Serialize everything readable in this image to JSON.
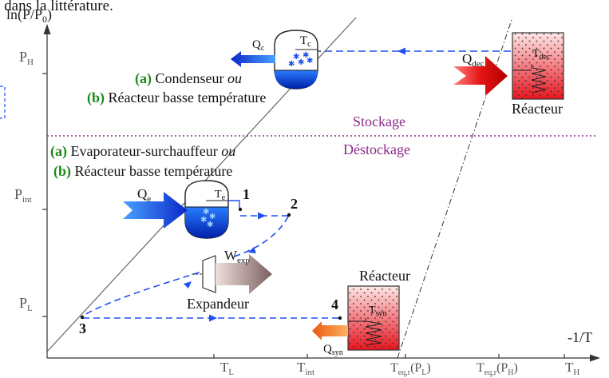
{
  "header_fragment": "e dans la littérature.",
  "axes": {
    "y_label": "ln(P/P",
    "y_label_sub": "0",
    "y_label_close": ")",
    "x_label": "-1/T",
    "y_ticks": [
      {
        "main": "P",
        "sub": "H"
      },
      {
        "main": "P",
        "sub": "int"
      },
      {
        "main": "P",
        "sub": "L"
      }
    ],
    "x_ticks": [
      {
        "main": "T",
        "sub": "L",
        "tail": ""
      },
      {
        "main": "T",
        "sub": "int",
        "tail": ""
      },
      {
        "main": "T",
        "sub": "eq,r",
        "tail": "(P",
        "tail_sub": "L",
        "tail_close": ")"
      },
      {
        "main": "T",
        "sub": "eq,r",
        "tail": "(P",
        "tail_sub": "H",
        "tail_close": ")"
      },
      {
        "main": "T",
        "sub": "H",
        "tail": ""
      }
    ]
  },
  "sections": {
    "stockage": "Stockage",
    "destockage": "Déstockage"
  },
  "condenser": {
    "line1_tag": "(a)",
    "line1_text": "Condenseur",
    "line1_or": "ou",
    "line2_tag": "(b)",
    "line2_text": "Réacteur basse température",
    "heat": "Q",
    "heat_sub": "c",
    "temp": "T",
    "temp_sub": "c"
  },
  "evaporator": {
    "line1_tag": "(a)",
    "line1_text": "Evaporateur-surchauffeur",
    "line1_or": "ou",
    "line2_tag": "(b)",
    "line2_text": "Réacteur basse température",
    "heat": "Q",
    "heat_sub": "e",
    "temp": "T",
    "temp_sub": "e"
  },
  "reactor_high": {
    "label": "Réacteur",
    "heat": "Q",
    "heat_sub": "dec",
    "temp": "T",
    "temp_sub": "dec"
  },
  "reactor_low": {
    "label": "Réacteur",
    "heat": "Q",
    "heat_sub": "syn",
    "temp": "T",
    "temp_sub": "syn"
  },
  "expander": {
    "label": "Expandeur",
    "work": "W",
    "work_sub": "exp"
  },
  "points": [
    "1",
    "2",
    "3",
    "4"
  ],
  "colors": {
    "blue_flow": "#1e50f0",
    "green_tag": "#1a8a1a",
    "purple": "#8a2a8a",
    "reactor_red": "#e8141e"
  }
}
